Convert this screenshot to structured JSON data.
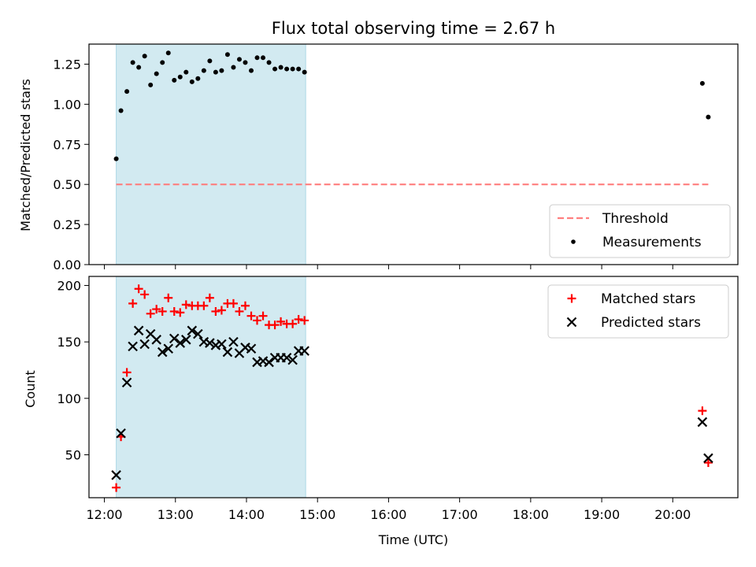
{
  "figure": {
    "title": "Flux total observing time = 2.67 h",
    "xlabel": "Time (UTC)",
    "xticks": [
      "12:00",
      "13:00",
      "14:00",
      "15:00",
      "16:00",
      "17:00",
      "18:00",
      "19:00",
      "20:00"
    ],
    "shaded_span": [
      "12:10",
      "14:50"
    ],
    "colors": {
      "shade": "#add8e6",
      "threshold": "#ff7f7f",
      "matched": "#ff0000",
      "predicted": "#000000",
      "measurements": "#000000"
    }
  },
  "chart_data": [
    {
      "type": "scatter",
      "panel": "top",
      "ylabel": "Matched/Predicted stars",
      "xlim": [
        "11:47",
        "20:55"
      ],
      "ylim": [
        0.0,
        1.375
      ],
      "yticks": [
        "0.00",
        "0.25",
        "0.50",
        "0.75",
        "1.00",
        "1.25"
      ],
      "legend": "lower right",
      "series": [
        {
          "name": "Threshold",
          "kind": "dashed-line",
          "x": [
            "12:10",
            "20:30"
          ],
          "y": [
            0.5,
            0.5
          ]
        },
        {
          "name": "Measurements",
          "kind": "dot",
          "x": [
            "12:10",
            "12:14",
            "12:19",
            "12:24",
            "12:29",
            "12:34",
            "12:39",
            "12:44",
            "12:49",
            "12:54",
            "12:59",
            "13:04",
            "13:09",
            "13:14",
            "13:19",
            "13:24",
            "13:29",
            "13:34",
            "13:39",
            "13:44",
            "13:49",
            "13:54",
            "13:59",
            "14:04",
            "14:09",
            "14:14",
            "14:19",
            "14:24",
            "14:29",
            "14:34",
            "14:39",
            "14:44",
            "14:49",
            "20:25",
            "20:30"
          ],
          "y": [
            0.66,
            0.96,
            1.08,
            1.26,
            1.23,
            1.3,
            1.12,
            1.19,
            1.26,
            1.32,
            1.15,
            1.17,
            1.2,
            1.14,
            1.16,
            1.21,
            1.27,
            1.2,
            1.21,
            1.31,
            1.23,
            1.28,
            1.26,
            1.21,
            1.29,
            1.29,
            1.26,
            1.22,
            1.23,
            1.22,
            1.22,
            1.22,
            1.2,
            1.13,
            0.92
          ]
        }
      ]
    },
    {
      "type": "scatter",
      "panel": "bottom",
      "ylabel": "Count",
      "xlim": [
        "11:47",
        "20:55"
      ],
      "ylim": [
        12,
        208
      ],
      "yticks": [
        "50",
        "100",
        "150",
        "200"
      ],
      "legend": "upper right",
      "series": [
        {
          "name": "Matched stars",
          "kind": "plus",
          "x": [
            "12:10",
            "12:14",
            "12:19",
            "12:24",
            "12:29",
            "12:34",
            "12:39",
            "12:44",
            "12:49",
            "12:54",
            "12:59",
            "13:04",
            "13:09",
            "13:14",
            "13:19",
            "13:24",
            "13:29",
            "13:34",
            "13:39",
            "13:44",
            "13:49",
            "13:54",
            "13:59",
            "14:04",
            "14:09",
            "14:14",
            "14:19",
            "14:24",
            "14:29",
            "14:34",
            "14:39",
            "14:44",
            "14:49",
            "20:25",
            "20:30"
          ],
          "y": [
            21,
            66,
            123,
            184,
            197,
            192,
            175,
            179,
            177,
            189,
            177,
            176,
            183,
            182,
            182,
            182,
            189,
            177,
            178,
            184,
            184,
            177,
            182,
            173,
            169,
            173,
            165,
            165,
            168,
            166,
            166,
            170,
            169,
            89,
            43
          ]
        },
        {
          "name": "Predicted stars",
          "kind": "cross",
          "x": [
            "12:10",
            "12:14",
            "12:19",
            "12:24",
            "12:29",
            "12:34",
            "12:39",
            "12:44",
            "12:49",
            "12:54",
            "12:59",
            "13:04",
            "13:09",
            "13:14",
            "13:19",
            "13:24",
            "13:29",
            "13:34",
            "13:39",
            "13:44",
            "13:49",
            "13:54",
            "13:59",
            "14:04",
            "14:09",
            "14:14",
            "14:19",
            "14:24",
            "14:29",
            "14:34",
            "14:39",
            "14:44",
            "14:49",
            "20:25",
            "20:30"
          ],
          "y": [
            32,
            69,
            114,
            146,
            160,
            148,
            157,
            152,
            141,
            144,
            153,
            149,
            152,
            160,
            157,
            150,
            149,
            147,
            148,
            141,
            150,
            140,
            145,
            144,
            132,
            133,
            132,
            136,
            136,
            136,
            134,
            142,
            142,
            79,
            47
          ]
        }
      ]
    }
  ]
}
